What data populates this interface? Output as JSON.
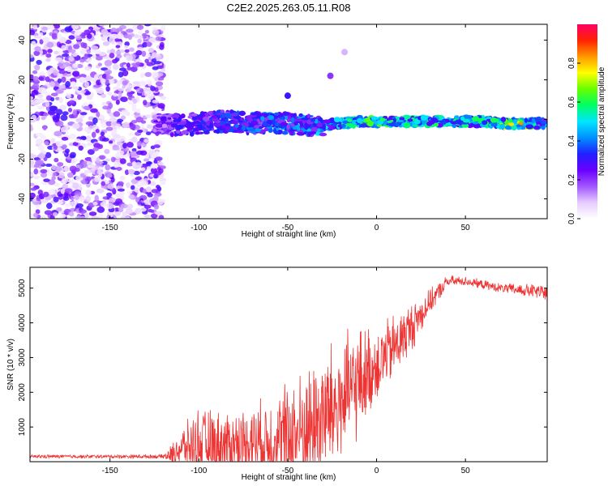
{
  "title": "C2E2.2025.263.05.11.R08",
  "chart_data": [
    {
      "type": "heatmap",
      "name": "spectrogram",
      "xlabel": "Height of straight line (km)",
      "ylabel": "Frequency (Hz)",
      "xlim": [
        -195,
        96
      ],
      "ylim": [
        -50,
        48
      ],
      "xticks": [
        -150,
        -100,
        -50,
        0,
        50
      ],
      "yticks": [
        -40,
        -20,
        0,
        20,
        40
      ],
      "colorbar": {
        "label": "Normalized spectral amplitude",
        "range": [
          0,
          1
        ],
        "ticks": [
          0.0,
          0.2,
          0.4,
          0.6,
          0.8
        ],
        "colors": [
          "#ffffff",
          "#e6ccff",
          "#a155ff",
          "#6a00ff",
          "#2020ff",
          "#0090ff",
          "#00e6ff",
          "#00ff66",
          "#66ff00",
          "#ffff00",
          "#ff9900",
          "#ff2200",
          "#ff0066"
        ]
      },
      "noise_region_x": [
        -195,
        -120
      ],
      "ridge": {
        "x": [
          -125,
          -110,
          -100,
          -90,
          -80,
          -70,
          -60,
          -50,
          -40,
          -30,
          -20,
          -10,
          0,
          10,
          20,
          30,
          40,
          50,
          60,
          70,
          80,
          90,
          96
        ],
        "freq": [
          -2,
          -3,
          -2,
          -1,
          -1,
          -2,
          -1,
          -2,
          -3,
          -3,
          -2,
          -1,
          -1,
          -1,
          -1,
          -1,
          -1,
          -1,
          -1,
          -2,
          -2,
          -2,
          -2
        ],
        "amplitude": [
          0.25,
          0.35,
          0.35,
          0.4,
          0.4,
          0.42,
          0.45,
          0.45,
          0.48,
          0.52,
          0.6,
          0.66,
          0.66,
          0.64,
          0.64,
          0.62,
          0.6,
          0.6,
          0.62,
          0.7,
          0.95,
          0.55,
          0.5
        ]
      },
      "features": [
        {
          "x": -50,
          "freq": 12,
          "amplitude": 0.3
        },
        {
          "x": -26,
          "freq": 22,
          "amplitude": 0.2
        },
        {
          "x": -18,
          "freq": 34,
          "amplitude": 0.1
        }
      ]
    },
    {
      "type": "line",
      "name": "snr",
      "xlabel": "Height of straight line (km)",
      "ylabel": "SNR (10 * v/v)",
      "xlim": [
        -195,
        96
      ],
      "ylim": [
        0,
        5600
      ],
      "xticks": [
        -150,
        -100,
        -50,
        0,
        50
      ],
      "yticks": [
        1000,
        2000,
        3000,
        4000,
        5000
      ],
      "color": "#ee3333",
      "envelope": {
        "x": [
          -195,
          -150,
          -120,
          -115,
          -110,
          -100,
          -90,
          -80,
          -70,
          -60,
          -50,
          -40,
          -30,
          -20,
          -10,
          0,
          10,
          20,
          30,
          40,
          50,
          60,
          70,
          80,
          90,
          96
        ],
        "baseline": [
          150,
          150,
          150,
          200,
          400,
          500,
          500,
          500,
          600,
          600,
          700,
          900,
          1300,
          1700,
          2300,
          2800,
          3300,
          3900,
          4600,
          5200,
          5200,
          5100,
          5000,
          4950,
          4900,
          4850
        ],
        "spread": [
          60,
          60,
          70,
          350,
          600,
          1200,
          1100,
          1100,
          1200,
          1400,
          1900,
          2000,
          2300,
          2100,
          1800,
          1200,
          1100,
          800,
          400,
          200,
          150,
          150,
          150,
          200,
          250,
          300
        ]
      }
    }
  ]
}
